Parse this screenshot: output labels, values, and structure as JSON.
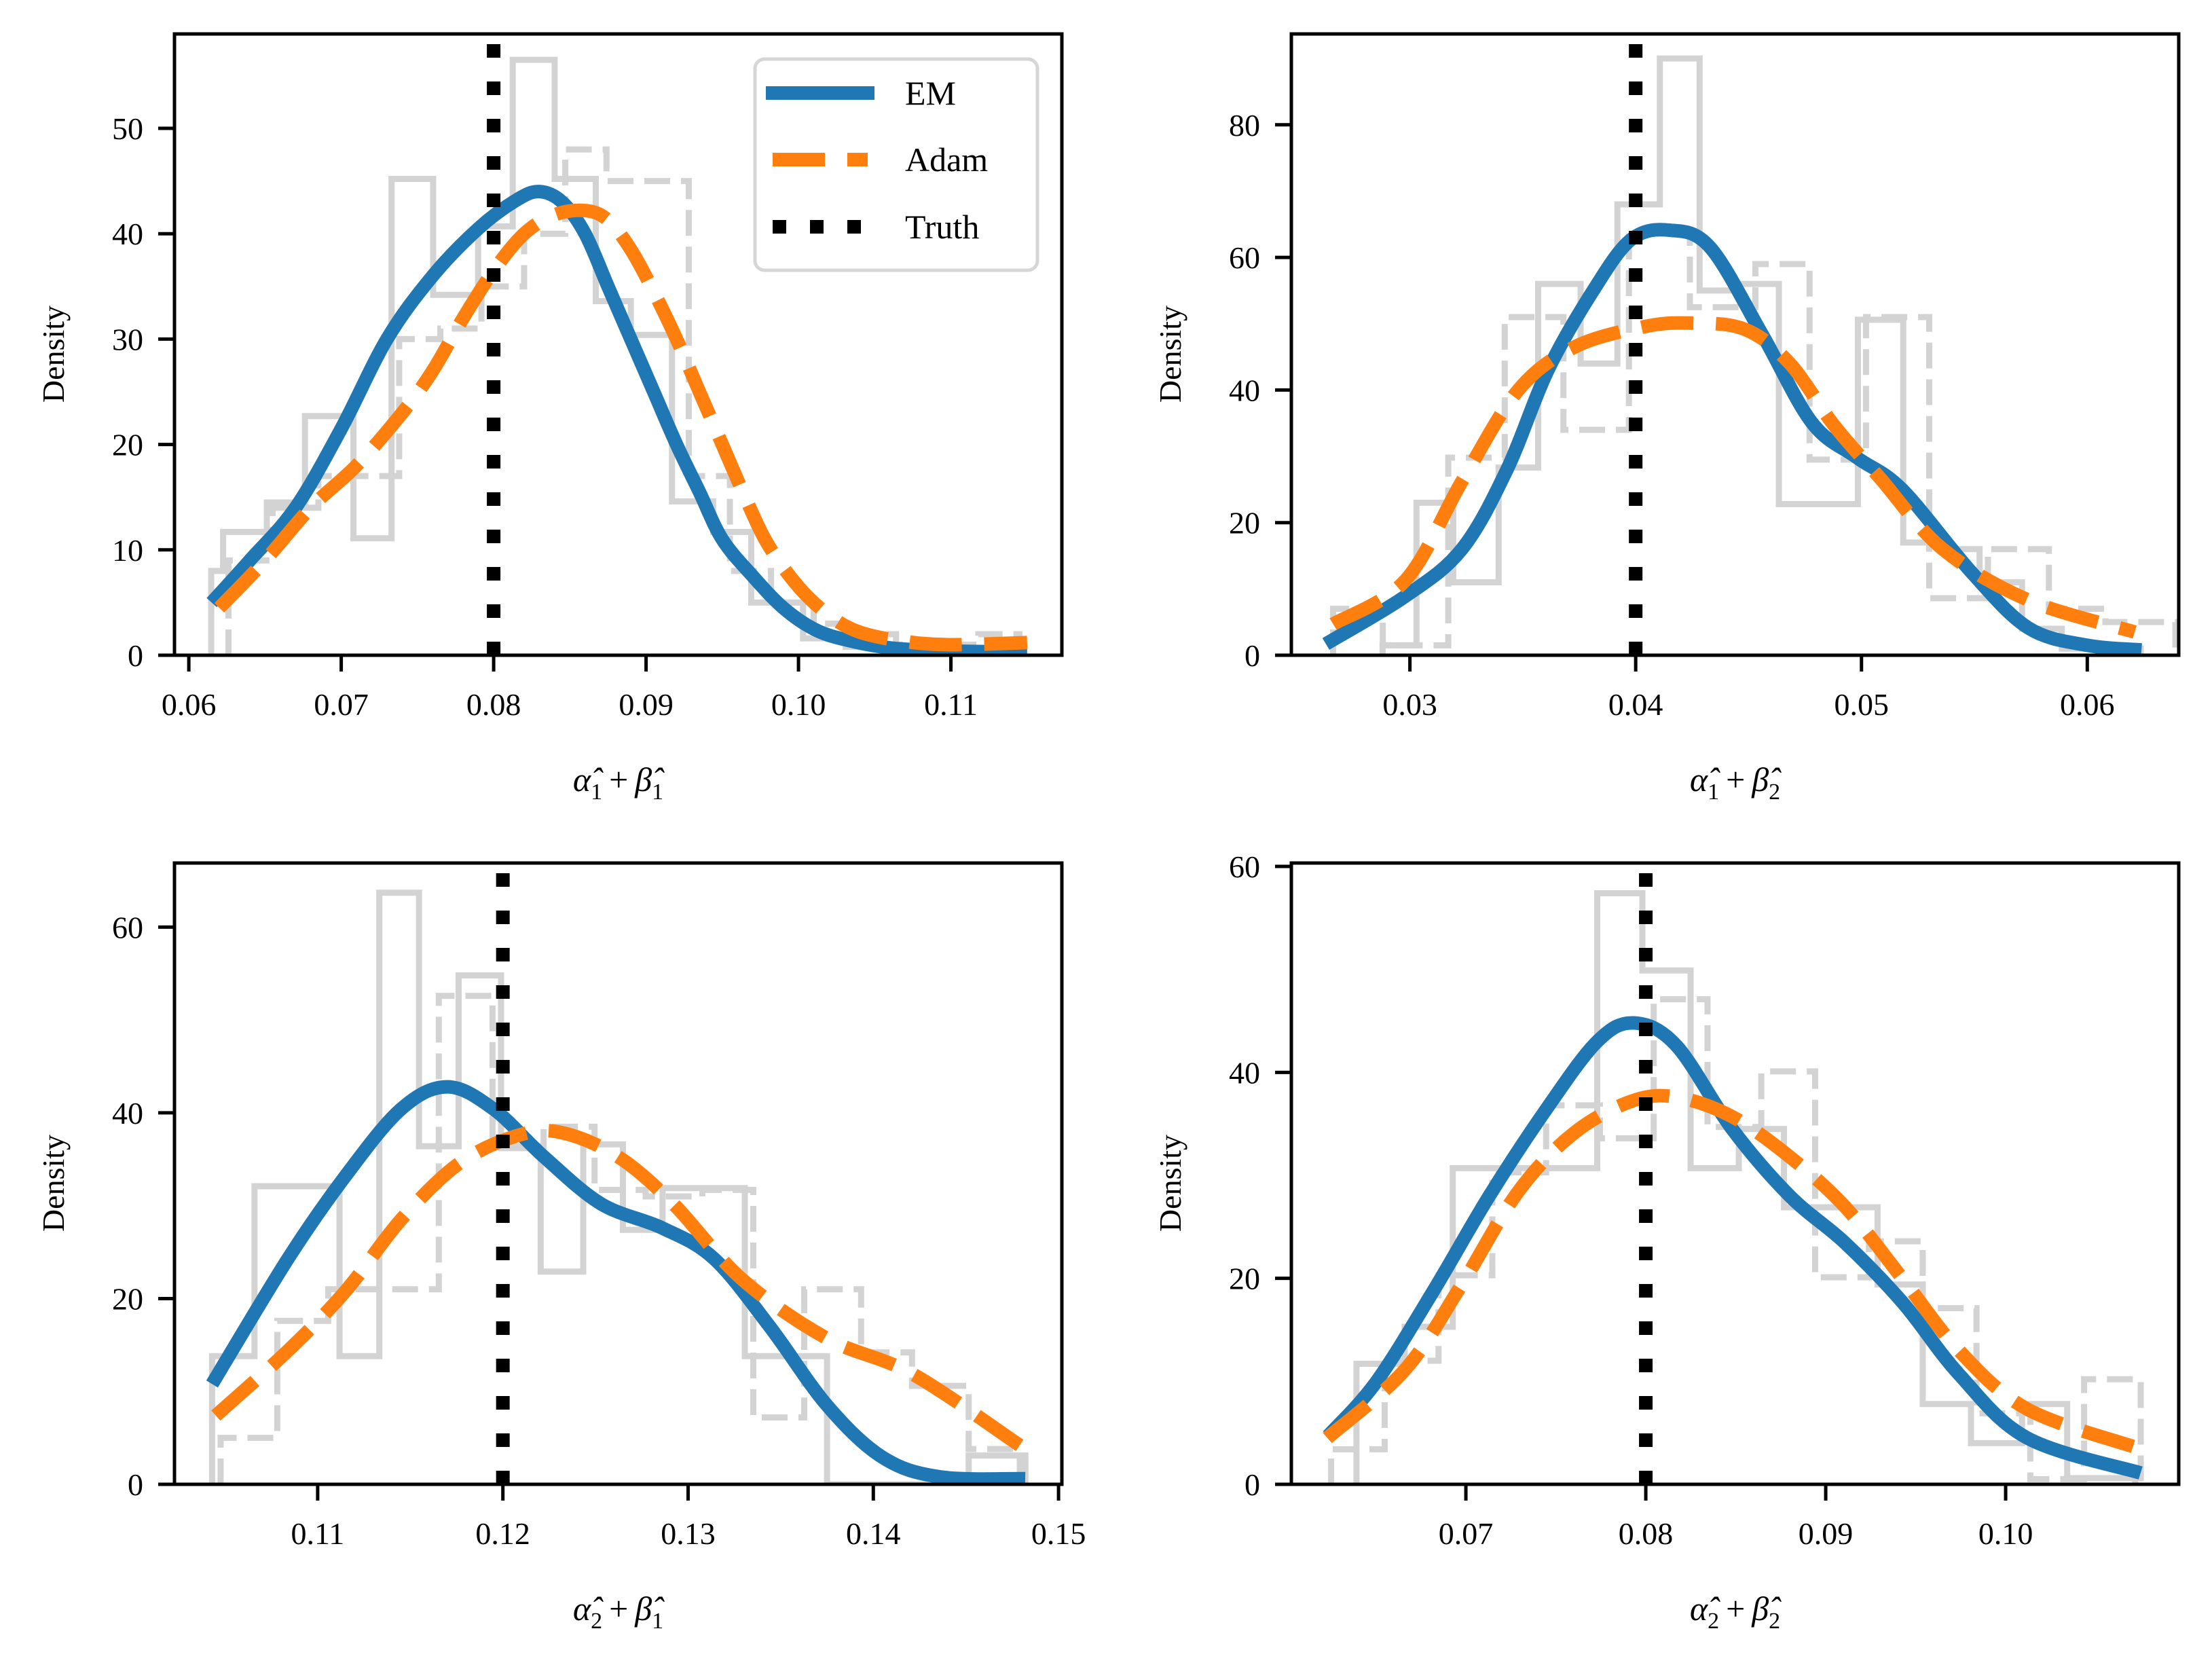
{
  "figure": {
    "legend": [
      {
        "label": "EM",
        "color": "#1f77b4",
        "style": "solid"
      },
      {
        "label": "Adam",
        "color": "#ff7f0e",
        "style": "dashed"
      },
      {
        "label": "Truth",
        "color": "#000000",
        "style": "dotted"
      }
    ],
    "hist_color": "#d3d3d3"
  },
  "chart_data": [
    {
      "type": "line",
      "panel": "top-left",
      "title": "",
      "xlabel_parts": {
        "a": "α̂",
        "a_sub": "1",
        "plus": "+",
        "b": "β̂",
        "b_sub": "1"
      },
      "xlabel": "α̂1 + β̂1",
      "ylabel": "Density",
      "xlim": [
        0.05906,
        0.11728
      ],
      "ylim": [
        0,
        58.96
      ],
      "xticks": [
        0.06,
        0.07,
        0.08,
        0.09,
        0.1,
        0.11
      ],
      "xtick_labels": [
        "0.06",
        "0.07",
        "0.08",
        "0.09",
        "0.10",
        "0.11"
      ],
      "yticks": [
        0,
        10,
        20,
        30,
        40,
        50
      ],
      "ytick_labels": [
        "0",
        "10",
        "20",
        "30",
        "40",
        "50"
      ],
      "truth": 0.08,
      "legend_position": "top-right",
      "show_legend": true,
      "series": [
        {
          "name": "EM",
          "x": [
            0.0615,
            0.064,
            0.067,
            0.07,
            0.073,
            0.076,
            0.079,
            0.0815,
            0.083,
            0.0845,
            0.086,
            0.0875,
            0.089,
            0.0905,
            0.092,
            0.0935,
            0.095,
            0.097,
            0.099,
            0.101,
            0.103,
            0.106,
            0.11,
            0.115
          ],
          "y": [
            5,
            9,
            14,
            21.5,
            30,
            36,
            40.5,
            43.2,
            44,
            43,
            40,
            35,
            30,
            25,
            20,
            15.5,
            11,
            7.5,
            4.5,
            2.5,
            1.5,
            0.7,
            0.4,
            0.3
          ]
        },
        {
          "name": "Adam",
          "x": [
            0.062,
            0.065,
            0.068,
            0.071,
            0.074,
            0.076,
            0.078,
            0.08,
            0.082,
            0.084,
            0.086,
            0.0875,
            0.089,
            0.0905,
            0.092,
            0.0935,
            0.095,
            0.0965,
            0.098,
            0.1,
            0.102,
            0.104,
            0.107,
            0.11,
            0.115
          ],
          "y": [
            4.5,
            9,
            14,
            18,
            23,
            27,
            32,
            36.5,
            40,
            41.8,
            42.2,
            41.3,
            38.5,
            34.5,
            30,
            25,
            20,
            15,
            10.5,
            6.5,
            3.8,
            2.2,
            1.3,
            1.0,
            1.2
          ]
        }
      ],
      "hist_solid": {
        "edges": [
          0.06147,
          0.06225,
          0.06512,
          0.06762,
          0.0708,
          0.0733,
          0.07603,
          0.07898,
          0.08125,
          0.084,
          0.0867,
          0.089,
          0.0917,
          0.0944,
          0.0969,
          0.1003,
          0.1031,
          0.1062
        ],
        "heights": [
          8,
          11.7,
          14.5,
          22.7,
          11.1,
          45.2,
          34.2,
          40.7,
          56.5,
          45.2,
          33.6,
          30.4,
          14.6,
          11.7,
          5.0,
          1.6,
          0.8
        ]
      },
      "hist_dashed": {
        "edges": [
          0.0626,
          0.0655,
          0.0685,
          0.0712,
          0.0738,
          0.0765,
          0.0792,
          0.082,
          0.0847,
          0.0874,
          0.0901,
          0.0928,
          0.0955,
          0.0982,
          0.101,
          0.1037,
          0.1064,
          0.1091,
          0.1118,
          0.1145
        ],
        "heights": [
          9,
          14,
          17,
          17,
          30,
          31,
          35,
          40,
          48,
          45,
          45,
          17,
          8,
          5,
          3,
          2,
          1,
          1,
          2
        ]
      }
    },
    {
      "type": "line",
      "panel": "top-right",
      "title": "",
      "xlabel_parts": {
        "a": "α̂",
        "a_sub": "1",
        "plus": "+",
        "b": "β̂",
        "b_sub": "2"
      },
      "xlabel": "α̂1 + β̂2",
      "ylabel": "Density",
      "xlim": [
        0.02475,
        0.06405
      ],
      "ylim": [
        0,
        93.7
      ],
      "xticks": [
        0.03,
        0.04,
        0.05,
        0.06
      ],
      "xtick_labels": [
        "0.03",
        "0.04",
        "0.05",
        "0.06"
      ],
      "yticks": [
        0,
        20,
        40,
        60,
        80
      ],
      "ytick_labels": [
        "0",
        "20",
        "40",
        "60",
        "80"
      ],
      "truth": 0.04,
      "show_legend": false,
      "series": [
        {
          "name": "EM",
          "x": [
            0.02628,
            0.0298,
            0.0323,
            0.0343,
            0.0361,
            0.0381,
            0.0398,
            0.0415,
            0.0433,
            0.0456,
            0.0478,
            0.0498,
            0.0518,
            0.0549,
            0.0574,
            0.06,
            0.0624
          ],
          "y": [
            1.7,
            8.9,
            16,
            28,
            42.9,
            54.9,
            62.7,
            64.1,
            61.5,
            48.4,
            35.1,
            29.8,
            25,
            12.4,
            4.1,
            1.5,
            0.8
          ]
        },
        {
          "name": "Adam",
          "x": [
            0.0266,
            0.0298,
            0.0323,
            0.0348,
            0.0373,
            0.0403,
            0.0423,
            0.0448,
            0.0468,
            0.0488,
            0.0508,
            0.0536,
            0.0574,
            0.0621
          ],
          "y": [
            4.7,
            11.3,
            26.2,
            40,
            46.5,
            49.5,
            50.1,
            49.2,
            44.1,
            34.6,
            26.8,
            16,
            8.3,
            3.5
          ]
        }
      ],
      "hist_solid": {
        "edges": [
          0.02879,
          0.03029,
          0.03192,
          0.03393,
          0.03568,
          0.03756,
          0.03919,
          0.04107,
          0.04283,
          0.04458,
          0.04634,
          0.04984,
          0.05185,
          0.05348,
          0.05523,
          0.05711,
          0.05887,
          0.06237
        ],
        "heights": [
          1.5,
          23,
          11,
          28.3,
          56,
          44,
          68,
          90,
          55,
          56,
          22.8,
          50.6,
          17,
          16,
          11,
          4,
          1
        ]
      },
      "hist_dashed": {
        "edges": [
          0.0266,
          0.0288,
          0.0317,
          0.0342,
          0.0368,
          0.0397,
          0.0424,
          0.0453,
          0.0477,
          0.0502,
          0.053,
          0.0556,
          0.0583,
          0.0608,
          0.0639
        ],
        "heights": [
          7,
          1.5,
          29.8,
          51,
          34,
          63.6,
          52.5,
          59,
          29.5,
          51,
          8.6,
          16,
          7,
          5
        ]
      }
    },
    {
      "type": "line",
      "panel": "bottom-left",
      "title": "",
      "xlabel_parts": {
        "a": "α̂",
        "a_sub": "2",
        "plus": "+",
        "b": "β̂",
        "b_sub": "1"
      },
      "xlabel": "α̂2 + β̂1",
      "ylabel": "Density",
      "xlim": [
        0.10227,
        0.15018
      ],
      "ylim": [
        0,
        66.9
      ],
      "xticks": [
        0.11,
        0.12,
        0.13,
        0.14,
        0.15
      ],
      "xtick_labels": [
        "0.11",
        "0.12",
        "0.13",
        "0.14",
        "0.15"
      ],
      "yticks": [
        0,
        20,
        40,
        60
      ],
      "ytick_labels": [
        "0",
        "20",
        "40",
        "60"
      ],
      "truth": 0.12,
      "show_legend": false,
      "series": [
        {
          "name": "EM",
          "x": [
            0.1043,
            0.1084,
            0.1115,
            0.1145,
            0.117,
            0.1195,
            0.1222,
            0.1253,
            0.1286,
            0.1314,
            0.1344,
            0.1375,
            0.1405,
            0.1436,
            0.1482
          ],
          "y": [
            10.8,
            24.3,
            33.2,
            40.4,
            42.8,
            40.4,
            35.3,
            30.2,
            27.6,
            24.3,
            17,
            8.5,
            2.9,
            0.8,
            0.6
          ]
        },
        {
          "name": "Adam",
          "x": [
            0.1045,
            0.1084,
            0.1115,
            0.1145,
            0.1176,
            0.1207,
            0.1231,
            0.1262,
            0.1292,
            0.1329,
            0.1375,
            0.1421,
            0.1479
          ],
          "y": [
            7.4,
            14.4,
            20.8,
            28.5,
            34.5,
            37.5,
            37.9,
            35.3,
            30.2,
            22.1,
            15.7,
            11.9,
            4.2
          ]
        }
      ],
      "hist_solid": {
        "edges": [
          0.1043,
          0.10659,
          0.11118,
          0.11333,
          0.11547,
          0.11761,
          0.1199,
          0.12204,
          0.12434,
          0.12648,
          0.12862,
          0.13306,
          0.1375,
          0.14515,
          0.14821
        ],
        "heights": [
          13.8,
          32.1,
          13.8,
          63.7,
          36.4,
          54.8,
          36.2,
          22.9,
          36.6,
          27.4,
          31.9,
          13.8,
          0,
          3.1
        ]
      },
      "hist_dashed": {
        "edges": [
          0.10476,
          0.10782,
          0.11057,
          0.11654,
          0.11944,
          0.1222,
          0.12495,
          0.12771,
          0.13077,
          0.13352,
          0.13627,
          0.13934,
          0.14209,
          0.14515,
          0.14791
        ],
        "heights": [
          5,
          17.6,
          21,
          52.6,
          36.4,
          38.5,
          31.7,
          31,
          31.7,
          7.2,
          21,
          14.2,
          10.6,
          3.8
        ]
      }
    },
    {
      "type": "line",
      "panel": "bottom-right",
      "title": "",
      "xlabel_parts": {
        "a": "α̂",
        "a_sub": "2",
        "plus": "+",
        "b": "β̂",
        "b_sub": "2"
      },
      "xlabel": "α̂2 + β̂2",
      "ylabel": "Density",
      "xlim": [
        0.0603,
        0.10962
      ],
      "ylim": [
        0,
        60.33
      ],
      "xticks": [
        0.07,
        0.08,
        0.09,
        0.1
      ],
      "xtick_labels": [
        "0.07",
        "0.08",
        "0.09",
        "0.10"
      ],
      "yticks": [
        0,
        20,
        40,
        60
      ],
      "ytick_labels": [
        "0",
        "20",
        "40",
        "60"
      ],
      "truth": 0.08,
      "show_legend": false,
      "series": [
        {
          "name": "EM",
          "x": [
            0.06234,
            0.065,
            0.0682,
            0.0713,
            0.0745,
            0.0773,
            0.07934,
            0.0817,
            0.0848,
            0.088,
            0.0911,
            0.0943,
            0.0974,
            0.1012,
            0.1075
          ],
          "y": [
            4.7,
            9.9,
            18.8,
            28,
            36.5,
            43,
            44.8,
            42.6,
            34.5,
            28,
            23.4,
            17.6,
            10.7,
            4.5,
            1.1
          ]
        },
        {
          "name": "Adam",
          "x": [
            0.0623,
            0.0666,
            0.0697,
            0.0729,
            0.076,
            0.0792,
            0.0817,
            0.0848,
            0.088,
            0.0911,
            0.0943,
            0.0974,
            0.1012,
            0.1072
          ],
          "y": [
            4.5,
            11.1,
            19.2,
            28.4,
            34.1,
            37.2,
            37.6,
            35.7,
            31.8,
            26.9,
            19.9,
            13,
            7.3,
            3.6
          ]
        }
      ],
      "hist_solid": {
        "edges": [
          0.06392,
          0.0666,
          0.06927,
          0.0773,
          0.07981,
          0.08249,
          0.08517,
          0.08768,
          0.09288,
          0.09539,
          0.09807,
          0.10091,
          0.10342,
          0.1072
        ],
        "heights": [
          11.7,
          15.3,
          30.7,
          57.4,
          49.9,
          30.7,
          34.5,
          26.9,
          19.4,
          7.8,
          4,
          7.8,
          0.6
        ]
      },
      "hist_dashed": {
        "edges": [
          0.06251,
          0.06549,
          0.06848,
          0.07147,
          0.07446,
          0.07745,
          0.08044,
          0.08343,
          0.08642,
          0.08941,
          0.0924,
          0.09539,
          0.09838,
          0.10137,
          0.10436,
          0.10751
        ],
        "heights": [
          3.4,
          12,
          20.3,
          30.3,
          36.8,
          33.6,
          47.1,
          34.7,
          40.1,
          20.1,
          23.6,
          17.1,
          6.9,
          0.5,
          10.2
        ]
      }
    }
  ]
}
